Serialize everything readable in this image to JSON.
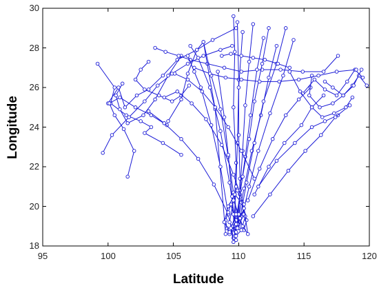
{
  "chart_data": {
    "type": "line",
    "title": "",
    "xlabel": "Latitude",
    "ylabel": "Longitude",
    "xlim": [
      95,
      120
    ],
    "ylim": [
      18,
      30
    ],
    "xticks": [
      95,
      100,
      105,
      110,
      115,
      120
    ],
    "yticks": [
      18,
      20,
      22,
      24,
      26,
      28,
      30
    ],
    "grid": false,
    "marker": "open-circle",
    "line_color": "#1a1ad6",
    "series": [
      {
        "x": [
          99.2,
          100.5,
          100.2,
          101.4,
          102.5,
          103.3,
          102.8,
          104.2,
          105.6
        ],
        "y": [
          27.2,
          26.0,
          25.2,
          24.6,
          24.3,
          24.0,
          23.7,
          23.2,
          22.6
        ]
      },
      {
        "x": [
          99.6,
          100.3,
          101.6,
          102.8,
          103.8,
          104.9,
          106.1,
          107.3,
          108.6,
          109.5
        ],
        "y": [
          22.7,
          23.6,
          24.5,
          25.3,
          26.1,
          26.7,
          27.2,
          27.6,
          27.9,
          28.1
        ]
      },
      {
        "x": [
          100.0,
          100.8,
          101.3,
          102.2,
          103.1,
          104.2,
          105.3,
          106.8,
          108.0,
          109.8
        ],
        "y": [
          25.2,
          26.0,
          25.0,
          25.6,
          25.9,
          26.6,
          27.4,
          27.9,
          28.4,
          29.0
        ]
      },
      {
        "x": [
          101.1,
          100.6,
          100.9,
          101.5,
          102.7,
          103.6,
          104.6,
          105.6
        ],
        "y": [
          26.2,
          25.6,
          24.9,
          24.2,
          24.6,
          25.4,
          26.6,
          27.6
        ]
      },
      {
        "x": [
          101.5,
          102.0,
          101.2,
          100.5,
          100.1,
          100.9,
          102.1,
          103.3,
          104.5
        ],
        "y": [
          21.5,
          22.8,
          23.9,
          24.6,
          25.2,
          25.5,
          25.0,
          24.6,
          24.1
        ]
      },
      {
        "x": [
          103.6,
          104.4,
          105.4,
          106.3,
          107.6,
          108.9,
          110.2,
          111.8,
          113.2,
          114.9,
          116.5,
          117.6
        ],
        "y": [
          28.0,
          27.8,
          27.6,
          27.4,
          27.2,
          27.0,
          26.8,
          26.9,
          26.9,
          26.8,
          26.8,
          27.6
        ]
      },
      {
        "x": [
          103.1,
          102.5,
          102.1,
          102.8,
          103.9,
          104.9,
          105.6,
          106.2
        ],
        "y": [
          27.3,
          26.9,
          26.4,
          25.9,
          25.6,
          25.3,
          25.6,
          26.1
        ]
      },
      {
        "x": [
          104.6,
          105.6,
          106.1,
          106.8,
          107.3,
          108.2,
          109.0
        ],
        "y": [
          24.3,
          25.4,
          26.7,
          27.9,
          28.3,
          24.9,
          18.6
        ]
      },
      {
        "x": [
          106.1,
          106.6,
          107.1,
          107.9,
          108.6,
          109.2,
          109.6
        ],
        "y": [
          27.6,
          26.8,
          26.0,
          24.1,
          22.0,
          19.6,
          18.4
        ]
      },
      {
        "x": [
          106.3,
          106.9,
          107.8,
          108.6,
          109.3,
          109.8
        ],
        "y": [
          28.1,
          27.5,
          26.0,
          23.8,
          21.2,
          18.9
        ]
      },
      {
        "x": [
          107.3,
          107.9,
          108.6,
          109.2,
          109.6,
          110.0
        ],
        "y": [
          28.3,
          26.6,
          24.9,
          22.5,
          20.7,
          19.1
        ]
      },
      {
        "x": [
          108.4,
          108.9,
          109.2,
          109.5,
          109.7
        ],
        "y": [
          26.8,
          24.5,
          22.6,
          20.5,
          18.5
        ]
      },
      {
        "x": [
          109.6,
          109.7,
          109.6,
          109.8,
          109.7,
          109.8
        ],
        "y": [
          29.6,
          27.8,
          25.0,
          22.2,
          20.6,
          18.3
        ]
      },
      {
        "x": [
          109.9,
          110.0,
          110.0,
          110.1,
          110.0
        ],
        "y": [
          29.3,
          26.4,
          23.6,
          21.4,
          18.9
        ]
      },
      {
        "x": [
          110.3,
          110.0,
          109.9,
          109.8,
          109.6
        ],
        "y": [
          28.8,
          26.0,
          23.2,
          21.0,
          18.8
        ]
      },
      {
        "x": [
          111.1,
          110.8,
          110.5,
          110.3,
          110.1,
          109.9
        ],
        "y": [
          29.2,
          27.3,
          25.1,
          22.8,
          20.8,
          19.3
        ]
      },
      {
        "x": [
          111.9,
          111.4,
          110.9,
          110.5,
          110.1,
          109.8
        ],
        "y": [
          28.5,
          26.9,
          24.6,
          22.5,
          20.6,
          18.7
        ]
      },
      {
        "x": [
          112.3,
          111.8,
          111.2,
          110.8,
          110.3,
          109.8
        ],
        "y": [
          29.0,
          27.2,
          25.3,
          23.4,
          21.5,
          19.3
        ]
      },
      {
        "x": [
          112.9,
          112.3,
          111.7,
          111.0,
          110.4,
          109.9
        ],
        "y": [
          28.1,
          26.5,
          24.6,
          22.8,
          20.9,
          19.1
        ]
      },
      {
        "x": [
          113.6,
          112.9,
          111.9,
          111.2,
          110.6,
          110.1
        ],
        "y": [
          29.0,
          27.2,
          25.3,
          23.2,
          21.2,
          19.4
        ]
      },
      {
        "x": [
          114.2,
          113.4,
          112.4,
          111.5,
          110.8,
          110.3
        ],
        "y": [
          28.4,
          26.6,
          24.7,
          22.8,
          21.0,
          19.6
        ]
      },
      {
        "x": [
          115.5,
          114.6,
          113.6,
          112.6,
          111.6,
          110.7
        ],
        "y": [
          26.0,
          25.4,
          24.6,
          23.4,
          21.9,
          20.3
        ]
      },
      {
        "x": [
          116.5,
          115.6,
          114.8,
          113.5,
          112.3,
          111.2
        ],
        "y": [
          25.6,
          25.0,
          24.1,
          23.2,
          22.0,
          20.6
        ]
      },
      {
        "x": [
          117.6,
          116.6,
          115.6,
          114.3,
          112.9,
          111.5
        ],
        "y": [
          24.6,
          24.3,
          24.0,
          23.2,
          22.3,
          21.0
        ]
      },
      {
        "x": [
          118.5,
          117.4,
          116.3,
          115.1,
          113.8,
          112.4,
          111.1
        ],
        "y": [
          25.1,
          24.5,
          23.6,
          22.8,
          21.8,
          20.6,
          19.5
        ]
      },
      {
        "x": [
          119.5,
          118.9,
          118.3,
          117.5,
          116.6,
          115.8,
          114.9
        ],
        "y": [
          26.5,
          26.9,
          26.3,
          25.6,
          25.9,
          26.4,
          25.7
        ]
      },
      {
        "x": [
          119.8,
          119.2,
          118.7,
          118.0,
          117.2,
          116.2,
          115.4,
          115.6
        ],
        "y": [
          26.1,
          26.6,
          26.1,
          25.6,
          25.2,
          25.0,
          25.6,
          26.6
        ]
      },
      {
        "x": [
          118.7,
          118.2,
          117.3,
          116.4,
          115.6,
          114.7,
          113.9
        ],
        "y": [
          25.5,
          25.0,
          24.7,
          24.5,
          25.0,
          25.8,
          26.8
        ]
      },
      {
        "x": [
          116.6,
          117.2,
          118.0,
          118.8,
          119.4
        ],
        "y": [
          26.3,
          26.0,
          25.6,
          26.1,
          26.9
        ]
      },
      {
        "x": [
          113.9,
          113.0,
          112.0,
          111.1,
          110.2,
          109.4,
          108.7
        ],
        "y": [
          27.0,
          27.2,
          27.4,
          27.5,
          27.6,
          27.7,
          27.6
        ]
      },
      {
        "x": [
          105.1,
          106.1,
          107.2,
          108.2,
          109.2,
          110.2,
          111.2
        ],
        "y": [
          26.7,
          26.4,
          25.8,
          25.0,
          24.0,
          22.8,
          21.4
        ]
      },
      {
        "x": [
          104.3,
          105.3,
          106.4,
          107.5,
          108.7,
          109.6,
          110.4
        ],
        "y": [
          25.5,
          25.8,
          25.2,
          24.4,
          23.1,
          21.6,
          20.1
        ]
      },
      {
        "x": [
          103.1,
          104.3,
          105.6,
          106.9,
          108.1,
          109.2
        ],
        "y": [
          24.8,
          24.2,
          23.4,
          22.4,
          21.1,
          19.6
        ]
      },
      {
        "x": [
          106.6,
          107.8,
          109.0,
          110.2,
          111.6,
          113.1,
          114.6,
          116.1,
          117.5,
          119.0
        ],
        "y": [
          27.0,
          26.7,
          26.5,
          26.4,
          26.3,
          26.3,
          26.4,
          26.6,
          26.8,
          26.9
        ]
      },
      {
        "x": [
          109.3,
          109.1,
          109.0,
          109.2,
          109.4,
          109.6,
          109.8,
          110.1,
          110.4,
          110.6,
          110.4,
          110.0,
          109.6,
          109.3
        ],
        "y": [
          18.6,
          18.9,
          19.3,
          19.7,
          20.1,
          19.6,
          19.1,
          19.4,
          19.9,
          19.3,
          18.8,
          19.6,
          20.3,
          19.2
        ]
      },
      {
        "x": [
          109.5,
          109.8,
          110.2,
          110.5,
          110.2,
          109.7,
          109.2,
          108.9,
          109.3,
          109.9,
          110.4
        ],
        "y": [
          19.0,
          18.5,
          18.8,
          19.5,
          20.2,
          20.6,
          20.0,
          19.2,
          18.7,
          18.9,
          19.6
        ]
      },
      {
        "x": [
          109.6,
          109.4,
          109.8,
          110.3,
          110.7,
          110.4,
          109.9
        ],
        "y": [
          18.2,
          18.9,
          19.6,
          19.0,
          18.6,
          19.9,
          20.8
        ]
      }
    ]
  },
  "plot": {
    "xlabel": "Latitude",
    "ylabel": "Longitude",
    "xtick_labels": [
      "95",
      "100",
      "105",
      "110",
      "115",
      "120"
    ],
    "ytick_labels": [
      "18",
      "20",
      "22",
      "24",
      "26",
      "28",
      "30"
    ]
  }
}
